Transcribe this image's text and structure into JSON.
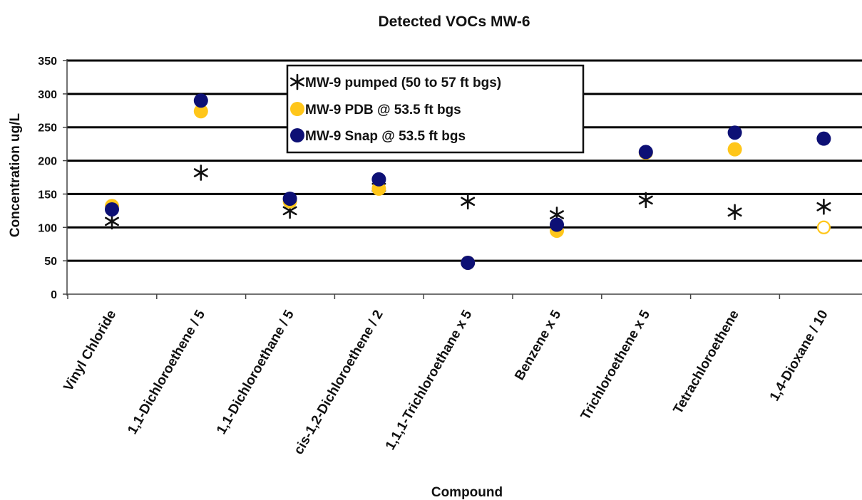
{
  "chart_data": {
    "type": "scatter",
    "title": "Detected VOCs  MW-6",
    "xlabel": "Compound",
    "ylabel": "Concentration ug/L",
    "ylim": [
      0,
      350
    ],
    "yticks": [
      0,
      50,
      100,
      150,
      200,
      250,
      300,
      350
    ],
    "grid": "horizontal",
    "legend_position": "top-center",
    "categories": [
      "Vinyl Chloride",
      "1,1-Dichloroethene / 5",
      "1,1-Dichloroethane / 5",
      "cis-1,2-Dichloroethene / 2",
      "1,1,1-Trichloroethane x 5",
      "Benzene x 5",
      "Trichloroethene x 5",
      "Tetrachloroethene",
      "1,4-Dioxane / 10"
    ],
    "series": [
      {
        "name": "MW-9 pumped (50 to 57 ft bgs)",
        "marker": "asterisk",
        "color": "#111111",
        "values": [
          109,
          182,
          125,
          160,
          139,
          119,
          141,
          123,
          131
        ]
      },
      {
        "name": "MW-9 PDB @ 53.5 ft bgs",
        "marker": "circle",
        "color": "#FFC61A",
        "values": [
          132,
          274,
          139,
          158,
          47,
          95,
          212,
          217,
          100
        ],
        "hollow_points": [
          8
        ]
      },
      {
        "name": "MW-9 Snap @ 53.5 ft bgs",
        "marker": "circle",
        "color": "#0D1075",
        "values": [
          127,
          290,
          143,
          172,
          47,
          104,
          213,
          242,
          233
        ]
      }
    ]
  }
}
